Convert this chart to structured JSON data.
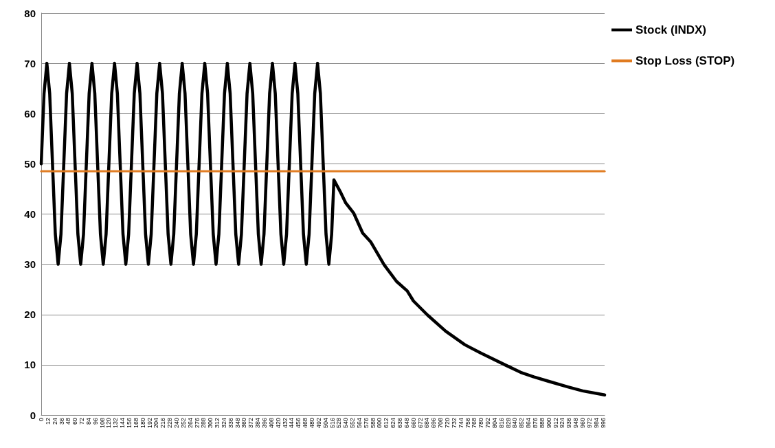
{
  "chart_data": {
    "type": "line",
    "series": [
      {
        "name": "Stock (INDX)",
        "color": "#000000",
        "x": [
          0,
          5,
          10,
          15,
          20,
          25,
          30,
          35,
          40,
          45,
          50,
          55,
          60,
          65,
          70,
          75,
          80,
          85,
          90,
          95,
          100,
          105,
          110,
          115,
          120,
          125,
          130,
          135,
          140,
          145,
          150,
          155,
          160,
          165,
          170,
          175,
          180,
          185,
          190,
          195,
          200,
          205,
          210,
          215,
          220,
          225,
          230,
          235,
          240,
          245,
          250,
          255,
          260,
          265,
          270,
          275,
          280,
          285,
          290,
          295,
          300,
          305,
          310,
          315,
          320,
          325,
          330,
          335,
          340,
          345,
          350,
          355,
          360,
          365,
          370,
          375,
          380,
          385,
          390,
          395,
          400,
          405,
          410,
          415,
          420,
          425,
          430,
          435,
          440,
          445,
          450,
          455,
          460,
          465,
          470,
          475,
          480,
          485,
          490,
          495,
          500,
          505,
          510,
          515,
          519,
          530,
          540,
          554,
          570,
          584,
          608,
          630,
          649,
          660,
          685,
          717,
          751,
          780,
          824,
          850,
          873,
          900,
          934,
          960,
          999
        ],
        "values": [
          50,
          64,
          70,
          64,
          50,
          36,
          30,
          36,
          50,
          64,
          70,
          64,
          50,
          36,
          30,
          36,
          50,
          64,
          70,
          64,
          50,
          36,
          30,
          36,
          50,
          64,
          70,
          64,
          50,
          36,
          30,
          36,
          50,
          64,
          70,
          64,
          50,
          36,
          30,
          36,
          50,
          64,
          70,
          64,
          50,
          36,
          30,
          36,
          50,
          64,
          70,
          64,
          50,
          36,
          30,
          36,
          50,
          64,
          70,
          64,
          50,
          36,
          30,
          36,
          50,
          64,
          70,
          64,
          50,
          36,
          30,
          36,
          50,
          64,
          70,
          64,
          50,
          36,
          30,
          36,
          50,
          64,
          70,
          64,
          50,
          36,
          30,
          36,
          50,
          64,
          70,
          64,
          50,
          36,
          30,
          36,
          50,
          64,
          70,
          64,
          50,
          36,
          30,
          36,
          46.8,
          44.5,
          42.2,
          40.2,
          36.2,
          34.5,
          29.9,
          26.6,
          24.7,
          22.7,
          19.9,
          16.7,
          14.0,
          12.3,
          9.9,
          8.5,
          7.6,
          6.7,
          5.6,
          4.8,
          4.0
        ]
      },
      {
        "name": "Stop Loss (STOP)",
        "color": "#e07b20",
        "x": [
          0,
          999
        ],
        "values": [
          48.5,
          48.5
        ]
      }
    ],
    "xlim": [
      0,
      999
    ],
    "xticks": [
      0,
      12,
      24,
      36,
      48,
      60,
      72,
      84,
      96,
      108,
      120,
      132,
      144,
      156,
      168,
      180,
      192,
      204,
      216,
      228,
      240,
      252,
      264,
      276,
      288,
      300,
      312,
      324,
      336,
      348,
      360,
      372,
      384,
      396,
      408,
      420,
      432,
      444,
      456,
      468,
      480,
      492,
      504,
      516,
      528,
      540,
      552,
      564,
      576,
      588,
      600,
      612,
      624,
      636,
      648,
      660,
      672,
      684,
      696,
      708,
      720,
      732,
      744,
      756,
      768,
      780,
      792,
      804,
      816,
      828,
      840,
      852,
      864,
      876,
      888,
      900,
      912,
      924,
      936,
      948,
      960,
      972,
      984,
      996
    ],
    "ylim": [
      0,
      80
    ],
    "yticks": [
      0,
      10,
      20,
      30,
      40,
      50,
      60,
      70,
      80
    ],
    "grid": "y",
    "legend": "top right",
    "marker": "none",
    "line_style": "solid"
  }
}
